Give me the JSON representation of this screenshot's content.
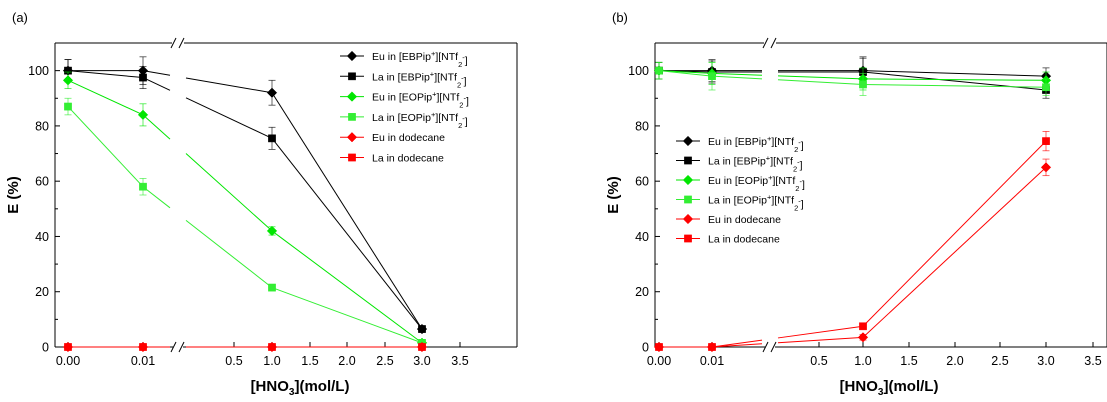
{
  "chart_data": [
    {
      "type": "line",
      "panel_label": "(a)",
      "xlabel": "[HNO3](mol/L)",
      "ylabel": "E (%)",
      "x_tick_labels": [
        "0.00",
        "0.01",
        "0.5",
        "1.0",
        "1.5",
        "2.0",
        "2.5",
        "3.0",
        "3.5"
      ],
      "y_tick_labels": [
        "0",
        "20",
        "40",
        "60",
        "80",
        "100"
      ],
      "ylim": [
        0,
        110
      ],
      "axis_break": "between 0.01 and 0.5",
      "legend_position": "top-right",
      "x": [
        "0.00",
        "0.01",
        "1.0",
        "3.0"
      ],
      "series": [
        {
          "name": "Eu in [EBPip+][NTf2-]",
          "marker": "diamond",
          "color": "#000000",
          "values": [
            100,
            100,
            92,
            6.5
          ],
          "errors": [
            4,
            5,
            4.5,
            1
          ]
        },
        {
          "name": "La in [EBPip+][NTf2-]",
          "marker": "square",
          "color": "#000000",
          "values": [
            100,
            97.5,
            75.5,
            6.5
          ],
          "errors": [
            4,
            4,
            4,
            1
          ]
        },
        {
          "name": "Eu in [EOPip+][NTf2-]",
          "marker": "diamond",
          "color": "#00e600",
          "values": [
            96.5,
            84,
            42,
            1.5
          ],
          "errors": [
            3,
            4,
            1.5,
            0.5
          ]
        },
        {
          "name": "La in [EOPip+][NTf2-]",
          "marker": "square",
          "color": "#33ee33",
          "values": [
            87,
            58,
            21.5,
            1.5
          ],
          "errors": [
            3,
            3,
            1,
            0.5
          ]
        },
        {
          "name": "Eu in dodecane",
          "marker": "diamond",
          "color": "#ff0000",
          "values": [
            0,
            0,
            0,
            0
          ],
          "errors": [
            0,
            0,
            0,
            0
          ]
        },
        {
          "name": "La in dodecane",
          "marker": "square",
          "color": "#ff0000",
          "values": [
            0,
            0,
            0,
            0
          ],
          "errors": [
            0,
            0,
            0,
            0
          ]
        }
      ]
    },
    {
      "type": "line",
      "panel_label": "(b)",
      "xlabel": "[HNO3](mol/L)",
      "ylabel": "E (%)",
      "x_tick_labels": [
        "0.00",
        "0.01",
        "0.5",
        "1.0",
        "1.5",
        "2.0",
        "2.5",
        "3.0",
        "3.5"
      ],
      "y_tick_labels": [
        "0",
        "20",
        "40",
        "60",
        "80",
        "100"
      ],
      "ylim": [
        0,
        110
      ],
      "axis_break": "between 0.01 and 0.5",
      "legend_position": "center-left",
      "x": [
        "0.00",
        "0.01",
        "1.0",
        "3.0"
      ],
      "series": [
        {
          "name": "Eu in [EBPip+][NTf2-]",
          "marker": "diamond",
          "color": "#000000",
          "values": [
            100,
            100,
            100,
            98
          ],
          "errors": [
            3,
            4,
            5,
            3
          ]
        },
        {
          "name": "La in [EBPip+][NTf2-]",
          "marker": "square",
          "color": "#000000",
          "values": [
            100,
            99.5,
            99.5,
            93
          ],
          "errors": [
            3,
            4,
            5,
            3
          ]
        },
        {
          "name": "Eu in [EOPip+][NTf2-]",
          "marker": "diamond",
          "color": "#00e600",
          "values": [
            100,
            99,
            97,
            96.5
          ],
          "errors": [
            3,
            4,
            4,
            3
          ]
        },
        {
          "name": "La in [EOPip+][NTf2-]",
          "marker": "square",
          "color": "#33ee33",
          "values": [
            100,
            98,
            95,
            94
          ],
          "errors": [
            3,
            5,
            4,
            3
          ]
        },
        {
          "name": "Eu in dodecane",
          "marker": "diamond",
          "color": "#ff0000",
          "values": [
            0,
            0,
            3.5,
            65
          ],
          "errors": [
            0,
            0,
            1,
            3
          ]
        },
        {
          "name": "La in dodecane",
          "marker": "square",
          "color": "#ff0000",
          "values": [
            0,
            0,
            7.5,
            74.5
          ],
          "errors": [
            0,
            0,
            1,
            3.5
          ]
        }
      ]
    }
  ]
}
